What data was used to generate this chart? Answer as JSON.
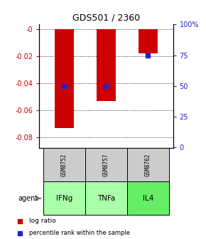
{
  "title": "GDS501 / 2360",
  "categories": [
    "IFNg",
    "TNFa",
    "IL4"
  ],
  "gsm_labels": [
    "GSM8752",
    "GSM8757",
    "GSM8762"
  ],
  "log_ratios": [
    -0.073,
    -0.053,
    -0.018
  ],
  "percentile_ranks": [
    50,
    50,
    75
  ],
  "bar_color": "#cc0000",
  "dot_color": "#2222cc",
  "ylim_left": [
    -0.088,
    0.004
  ],
  "ylim_right": [
    -0.5,
    100.5
  ],
  "yticks_left": [
    0,
    -0.02,
    -0.04,
    -0.06,
    -0.08
  ],
  "yticks_right": [
    0,
    25,
    50,
    75,
    100
  ],
  "ytick_labels_left": [
    "-0",
    "-0.02",
    "-0.04",
    "-0.06",
    "-0.08"
  ],
  "ytick_labels_right": [
    "0",
    "25",
    "50",
    "75",
    "100%"
  ],
  "agent_colors": [
    "#aaffaa",
    "#aaffaa",
    "#66ee66"
  ],
  "gsm_box_color": "#cccccc",
  "background_color": "#ffffff"
}
